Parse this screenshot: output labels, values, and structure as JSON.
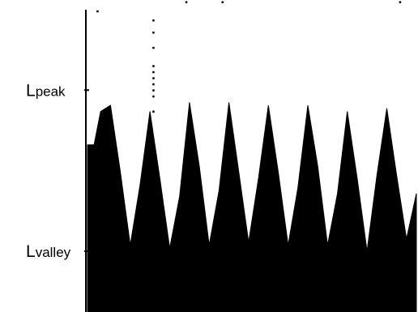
{
  "chart_data": {
    "type": "area",
    "title": "",
    "xlabel": "",
    "ylabel": "",
    "grid": false,
    "legend": "none",
    "fill_color": "#000000",
    "background": "#ffffff",
    "ylim": [
      0,
      10
    ],
    "xlim": [
      0,
      100
    ],
    "y_tick_labels": [
      {
        "name": "peak",
        "prefix": "L",
        "subscript": "peak",
        "value": 7.3
      },
      {
        "name": "valley",
        "prefix": "L",
        "subscript": "valley",
        "value": 2.0
      }
    ],
    "series": [
      {
        "x": [
          0,
          2,
          4,
          7,
          10,
          13,
          16,
          19,
          22,
          25,
          28,
          31,
          34,
          37,
          40,
          43,
          46,
          49,
          52,
          55,
          58,
          61,
          64,
          67,
          70,
          73,
          76,
          79,
          82,
          85,
          88,
          91,
          94,
          97,
          100
        ],
        "values": [
          5.5,
          5.5,
          6.6,
          6.8,
          4.6,
          2.2,
          4.2,
          6.6,
          4.4,
          2.1,
          3.8,
          6.9,
          4.8,
          2.2,
          4.0,
          6.9,
          4.6,
          2.3,
          4.4,
          6.8,
          4.6,
          2.2,
          4.1,
          6.8,
          4.8,
          2.2,
          3.9,
          6.6,
          4.4,
          2.0,
          4.5,
          6.7,
          4.5,
          2.4,
          3.9
        ]
      }
    ],
    "dots": [
      {
        "x": 3,
        "y": 9.9
      },
      {
        "x": 20,
        "y": 9.6
      },
      {
        "x": 20,
        "y": 9.2
      },
      {
        "x": 20,
        "y": 8.7
      },
      {
        "x": 20,
        "y": 8.1
      },
      {
        "x": 20,
        "y": 7.9
      },
      {
        "x": 20,
        "y": 7.7
      },
      {
        "x": 20,
        "y": 7.5
      },
      {
        "x": 20,
        "y": 7.3
      },
      {
        "x": 20,
        "y": 7.1
      },
      {
        "x": 20,
        "y": 6.6
      },
      {
        "x": 20,
        "y": 3.1
      },
      {
        "x": 30,
        "y": 10.2
      },
      {
        "x": 41,
        "y": 10.2
      },
      {
        "x": 95,
        "y": 10.2
      }
    ]
  }
}
